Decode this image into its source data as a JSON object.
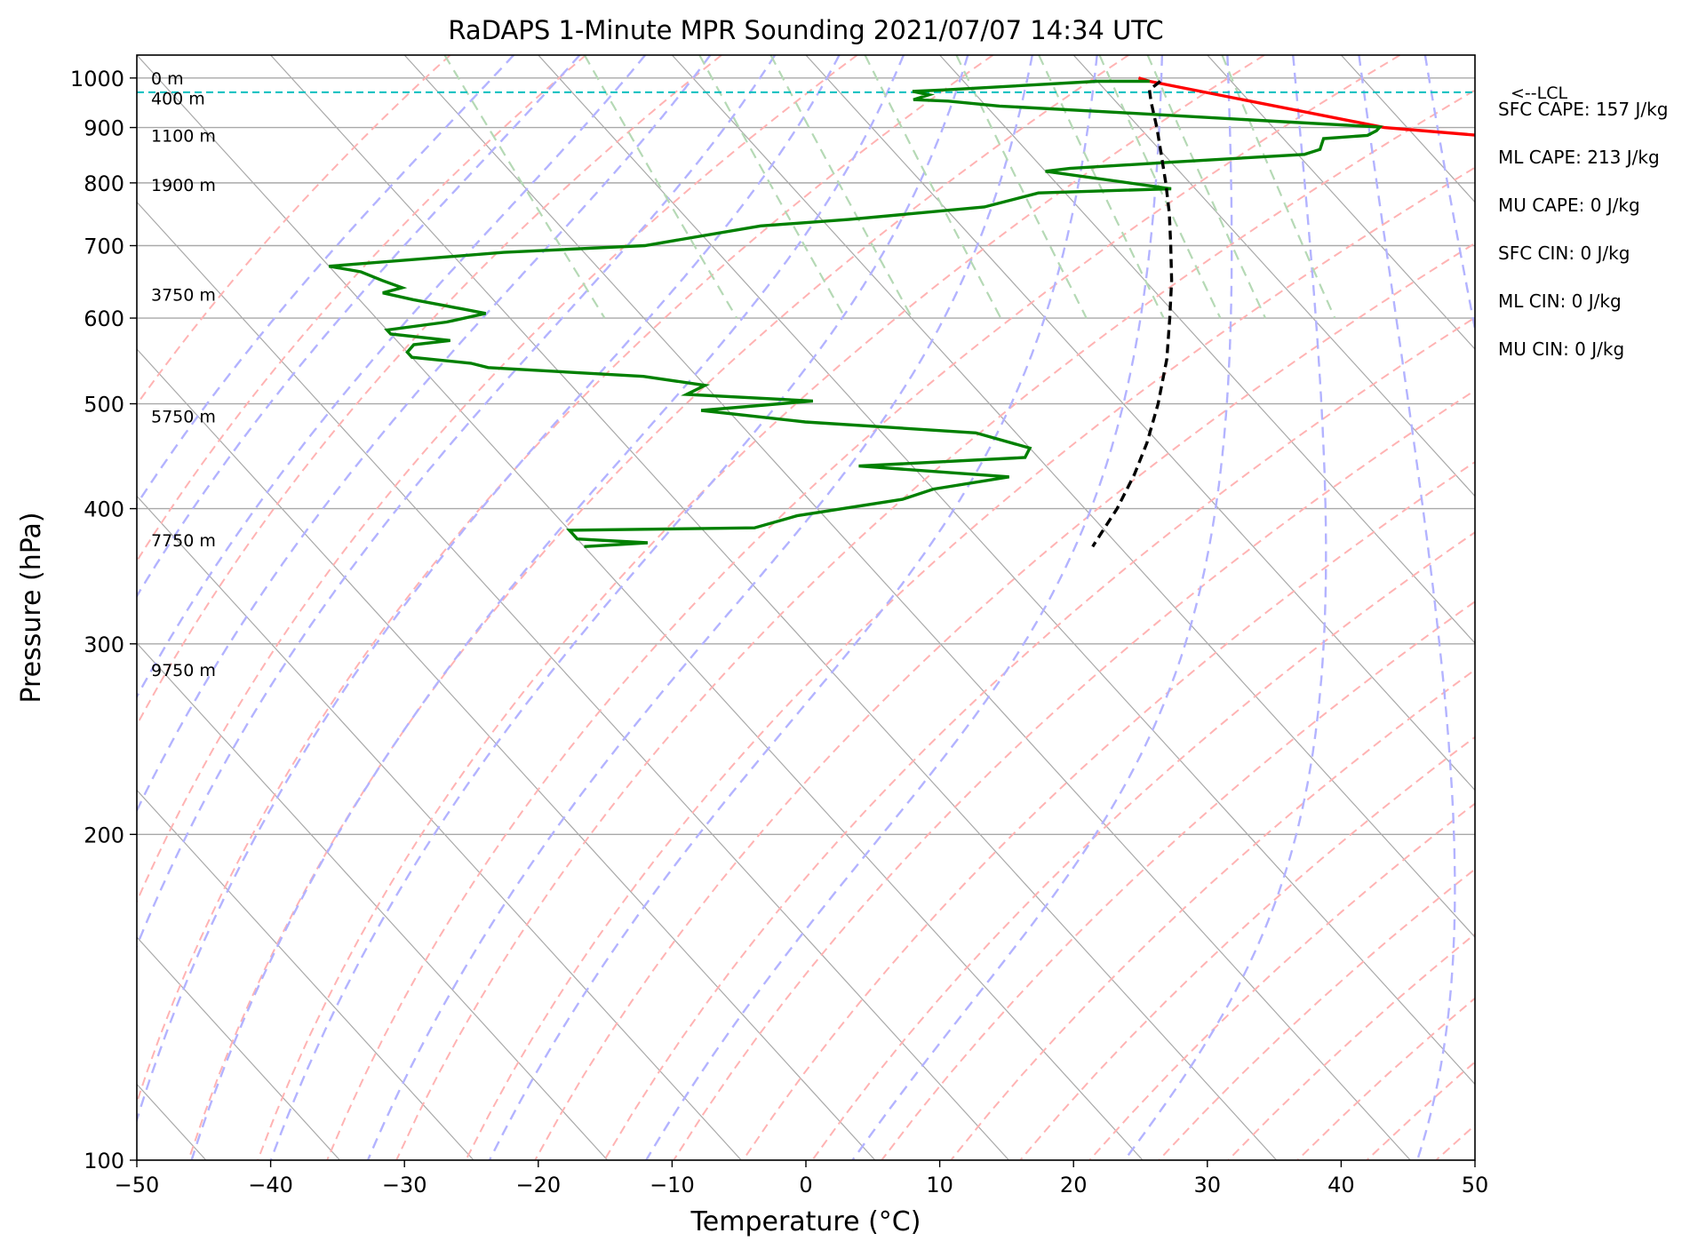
{
  "chart_data": {
    "type": "line",
    "title": "RaDAPS 1-Minute MPR Sounding 2021/07/07 14:34 UTC",
    "xlabel": "Temperature (°C)",
    "ylabel": "Pressure (hPa)",
    "xlim": [
      -50,
      50
    ],
    "ylim": [
      1050,
      100
    ],
    "y_scale": "log",
    "skew_t": true,
    "grid": true,
    "x_ticks": [
      "−50",
      "−40",
      "−30",
      "−20",
      "−10",
      "0",
      "10",
      "20",
      "30",
      "40",
      "50"
    ],
    "x_tick_values": [
      -50,
      -40,
      -30,
      -20,
      -10,
      0,
      10,
      20,
      30,
      40,
      50
    ],
    "y_ticks": [
      "100",
      "200",
      "300",
      "400",
      "500",
      "600",
      "700",
      "800",
      "900",
      "1000"
    ],
    "y_tick_values": [
      100,
      200,
      300,
      400,
      500,
      600,
      700,
      800,
      900,
      1000
    ],
    "colors": {
      "temperature": "#ff0000",
      "dewpoint": "#008000",
      "parcel": "#000000",
      "lcl": "#00bfbf",
      "isotherm": "#a9a9a9",
      "dry_adiabat": "#ffb3b3",
      "moist_adiabat": "#b3b3ff",
      "mixing_ratio": "#b5d9b5"
    },
    "series": [
      {
        "key": "temperature",
        "points": [
          [
            1000,
            23.3
          ],
          [
            993,
            23.9
          ],
          [
            900,
            38.3
          ],
          [
            879,
            47.5
          ],
          [
            870,
            45.0
          ],
          [
            860,
            50.0
          ]
        ]
      },
      {
        "key": "dewpoint",
        "points": [
          [
            993,
            23.9
          ],
          [
            993,
            20.0
          ],
          [
            975,
            8.0
          ],
          [
            972,
            5.5
          ],
          [
            965,
            6.5
          ],
          [
            955,
            5.0
          ],
          [
            952,
            7.5
          ],
          [
            942,
            11.0
          ],
          [
            929,
            19.7
          ],
          [
            913,
            30.0
          ],
          [
            901,
            38.0
          ],
          [
            894,
            37.5
          ],
          [
            885,
            36.5
          ],
          [
            879,
            33.0
          ],
          [
            859,
            32.0
          ],
          [
            850,
            30.5
          ],
          [
            836,
            20.0
          ],
          [
            825,
            12.0
          ],
          [
            820,
            10.0
          ],
          [
            790,
            18.2
          ],
          [
            783,
            8.0
          ],
          [
            760,
            3.0
          ],
          [
            740,
            -8.0
          ],
          [
            730,
            -15.0
          ],
          [
            700,
            -25.0
          ],
          [
            690,
            -36.0
          ],
          [
            670,
            -50.0
          ],
          [
            662,
            -48.0
          ],
          [
            650,
            -47.0
          ],
          [
            640,
            -46.0
          ],
          [
            633,
            -47.8
          ],
          [
            624,
            -46.0
          ],
          [
            612,
            -43.0
          ],
          [
            606,
            -41.5
          ],
          [
            595,
            -45.0
          ],
          [
            585,
            -50.0
          ],
          [
            580,
            -50.0
          ],
          [
            572,
            -46.0
          ],
          [
            567,
            -49.0
          ],
          [
            558,
            -50.0
          ],
          [
            552,
            -50.0
          ],
          [
            545,
            -46.0
          ],
          [
            540,
            -45.0
          ],
          [
            530,
            -34.0
          ],
          [
            520,
            -30.0
          ],
          [
            510,
            -32.0
          ],
          [
            503,
            -23.0
          ],
          [
            493,
            -32.0
          ],
          [
            481,
            -25.0
          ],
          [
            470,
            -13.0
          ],
          [
            455,
            -10.0
          ],
          [
            446,
            -11.0
          ],
          [
            438,
            -24.0
          ],
          [
            428,
            -13.5
          ],
          [
            417,
            -20.0
          ],
          [
            408,
            -23.0
          ],
          [
            394,
            -32.0
          ],
          [
            384,
            -36.0
          ],
          [
            382,
            -50.0
          ],
          [
            375,
            -50.0
          ],
          [
            372,
            -45.0
          ],
          [
            369,
            -50.0
          ]
        ]
      },
      {
        "key": "parcel",
        "points": [
          [
            993,
            24.7
          ],
          [
            975,
            23.3
          ],
          [
            950,
            22.6
          ],
          [
            900,
            21.3
          ],
          [
            850,
            19.8
          ],
          [
            800,
            18.2
          ],
          [
            750,
            16.4
          ],
          [
            700,
            14.3
          ],
          [
            650,
            12.0
          ],
          [
            600,
            9.3
          ],
          [
            550,
            6.3
          ],
          [
            500,
            2.6
          ],
          [
            460,
            -0.9
          ],
          [
            430,
            -4.0
          ],
          [
            400,
            -7.6
          ],
          [
            380,
            -10.4
          ],
          [
            369,
            -12.0
          ]
        ]
      }
    ],
    "lcl_pressure": 970,
    "lcl_label": "<--LCL",
    "height_labels": [
      {
        "p": 1000,
        "text": "0 m"
      },
      {
        "p": 958,
        "text": "400 m"
      },
      {
        "p": 885,
        "text": "1100 m"
      },
      {
        "p": 797,
        "text": "1900 m"
      },
      {
        "p": 631,
        "text": "3750 m"
      },
      {
        "p": 487,
        "text": "5750 m"
      },
      {
        "p": 374,
        "text": "7750 m"
      },
      {
        "p": 284,
        "text": "9750 m"
      }
    ],
    "stats": [
      "SFC CAPE: 157 J/kg",
      "ML CAPE: 213 J/kg",
      "MU CAPE: 0 J/kg",
      "SFC CIN: 0 J/kg",
      "ML CIN: 0 J/kg",
      "MU CIN: 0 J/kg"
    ]
  }
}
